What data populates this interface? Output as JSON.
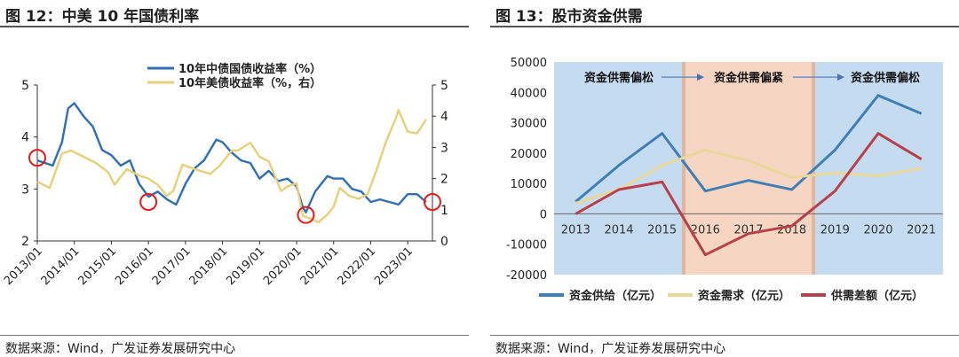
{
  "left": {
    "title": "图 12：中美 10 年国债利率",
    "source": "数据来源：Wind，广发证券发展研究中心",
    "chart_data": {
      "type": "line",
      "legend_position": "top-center",
      "x_ticks": [
        "2013/01",
        "2014/01",
        "2015/01",
        "2016/01",
        "2017/01",
        "2018/01",
        "2019/01",
        "2020/01",
        "2021/01",
        "2022/01",
        "2023/01"
      ],
      "xlim": [
        "2013/01",
        "2023/09"
      ],
      "y_left": {
        "ticks": [
          "2",
          "3",
          "4",
          "5"
        ],
        "ylim": [
          2,
          5
        ]
      },
      "y_right": {
        "ticks": [
          "0",
          "1",
          "2",
          "3",
          "4",
          "5"
        ],
        "ylim": [
          0,
          5
        ]
      },
      "series": [
        {
          "name": "10年中债国债收益率（%）",
          "axis": "left",
          "color": "#2e6fb5",
          "x": [
            "2013/01",
            "2013/06",
            "2013/09",
            "2013/11",
            "2014/01",
            "2014/04",
            "2014/07",
            "2014/10",
            "2015/01",
            "2015/04",
            "2015/07",
            "2015/10",
            "2016/01",
            "2016/04",
            "2016/07",
            "2016/10",
            "2017/01",
            "2017/04",
            "2017/07",
            "2017/11",
            "2018/01",
            "2018/04",
            "2018/07",
            "2018/10",
            "2019/01",
            "2019/04",
            "2019/07",
            "2019/10",
            "2020/01",
            "2020/03",
            "2020/04",
            "2020/07",
            "2020/11",
            "2021/01",
            "2021/04",
            "2021/07",
            "2021/10",
            "2022/01",
            "2022/04",
            "2022/07",
            "2022/10",
            "2023/01",
            "2023/04",
            "2023/07"
          ],
          "values": [
            3.55,
            3.45,
            3.9,
            4.55,
            4.65,
            4.4,
            4.2,
            3.75,
            3.65,
            3.45,
            3.55,
            3.1,
            2.85,
            2.95,
            2.8,
            2.7,
            3.1,
            3.4,
            3.55,
            3.95,
            3.9,
            3.7,
            3.55,
            3.5,
            3.2,
            3.35,
            3.15,
            3.2,
            3.05,
            2.65,
            2.55,
            2.95,
            3.25,
            3.2,
            3.2,
            3.0,
            2.95,
            2.75,
            2.8,
            2.75,
            2.7,
            2.9,
            2.9,
            2.75
          ]
        },
        {
          "name": "10年美债收益率（%，右）",
          "axis": "right",
          "color": "#e8cf78",
          "x": [
            "2013/01",
            "2013/05",
            "2013/09",
            "2013/12",
            "2014/04",
            "2014/08",
            "2014/12",
            "2015/02",
            "2015/06",
            "2015/10",
            "2016/01",
            "2016/04",
            "2016/07",
            "2016/09",
            "2016/12",
            "2017/04",
            "2017/09",
            "2017/12",
            "2018/04",
            "2018/06",
            "2018/10",
            "2019/01",
            "2019/04",
            "2019/08",
            "2019/10",
            "2020/01",
            "2020/03",
            "2020/06",
            "2020/08",
            "2020/11",
            "2021/01",
            "2021/03",
            "2021/06",
            "2021/09",
            "2021/12",
            "2022/03",
            "2022/06",
            "2022/09",
            "2022/10",
            "2023/01",
            "2023/04",
            "2023/07"
          ],
          "values": [
            1.9,
            1.7,
            2.8,
            2.9,
            2.7,
            2.5,
            2.2,
            1.8,
            2.3,
            2.1,
            2.0,
            1.8,
            1.45,
            1.6,
            2.45,
            2.3,
            2.15,
            2.4,
            2.9,
            2.9,
            3.15,
            2.7,
            2.55,
            1.6,
            1.75,
            1.85,
            0.8,
            0.7,
            0.6,
            0.85,
            1.1,
            1.7,
            1.45,
            1.35,
            1.5,
            2.3,
            3.2,
            3.9,
            4.2,
            3.5,
            3.45,
            3.9
          ]
        }
      ],
      "markers": [
        {
          "x": "2013/01",
          "axis": "left",
          "y": 3.6
        },
        {
          "x": "2016/01",
          "axis": "left",
          "y": 2.75
        },
        {
          "x": "2020/04",
          "axis": "left",
          "y": 2.5
        },
        {
          "x": "2023/09",
          "axis": "left",
          "y": 2.75
        }
      ]
    }
  },
  "right": {
    "title": "图 13：股市资金供需",
    "source": "数据来源：Wind，广发证券发展研究中心",
    "chart_data": {
      "type": "line",
      "legend_position": "bottom",
      "categories": [
        "2013",
        "2014",
        "2015",
        "2016",
        "2017",
        "2018",
        "2019",
        "2020",
        "2021"
      ],
      "y_ticks": [
        "50000",
        "40000",
        "30000",
        "20000",
        "10000",
        "0",
        "-10000",
        "-20000"
      ],
      "ylim": [
        -20000,
        50000
      ],
      "series": [
        {
          "name": "资金供给（亿元）",
          "color": "#3f7fb8",
          "values": [
            4000,
            16000,
            26500,
            7500,
            11000,
            8000,
            21000,
            39000,
            33000
          ]
        },
        {
          "name": "资金需求（亿元）",
          "color": "#ead89a",
          "values": [
            3500,
            8000,
            16000,
            21000,
            17500,
            12000,
            13500,
            12500,
            15000
          ]
        },
        {
          "name": "供需差额（亿元）",
          "color": "#b8404a",
          "values": [
            0,
            8000,
            10500,
            -13500,
            -6500,
            -4000,
            7500,
            26500,
            18000
          ]
        }
      ],
      "regions": [
        {
          "label": "资金供需偏松",
          "from": "2013",
          "to": "2015",
          "color": "#c5dcf0"
        },
        {
          "label": "资金供需偏紧",
          "from": "2015",
          "to": "2018",
          "color": "#f6d6c2"
        },
        {
          "label": "资金供需偏松",
          "from": "2018",
          "to": "2021",
          "color": "#c5dcf0"
        }
      ]
    }
  }
}
